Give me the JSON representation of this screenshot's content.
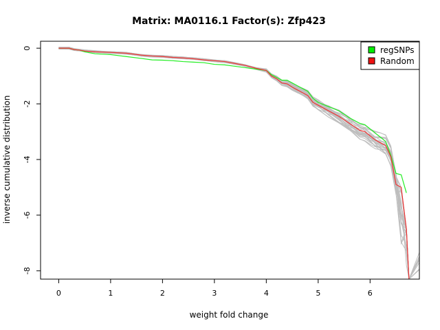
{
  "chart_data": {
    "type": "line",
    "title": "Matrix: MA0116.1 Factor(s): Zfp423",
    "xlabel": "weight fold change",
    "ylabel": "inverse cumulative distribution",
    "xlim": [
      -0.35,
      6.95
    ],
    "ylim": [
      -8.3,
      0.25
    ],
    "xticks": [
      0,
      1,
      2,
      3,
      4,
      5,
      6
    ],
    "yticks": [
      0,
      -2,
      -4,
      -6,
      -8
    ],
    "grid": false,
    "legend": {
      "position": "top-right",
      "entries": [
        {
          "label": "regSNPs",
          "color": "#00ee00"
        },
        {
          "label": "Random",
          "color": "#ee1111"
        }
      ]
    },
    "colors": {
      "regSNPs": "#22ee22",
      "Random": "#ee3333",
      "background_random": "#bebebe"
    },
    "series": [
      {
        "name": "regSNPs",
        "color": "#22ee22",
        "x": [
          0,
          0.2,
          0.3,
          0.4,
          0.5,
          0.7,
          1.0,
          1.3,
          1.6,
          1.8,
          2.0,
          2.2,
          2.4,
          2.6,
          2.8,
          3.0,
          3.2,
          3.4,
          3.6,
          3.8,
          4.0,
          4.1,
          4.2,
          4.3,
          4.4,
          4.5,
          4.6,
          4.7,
          4.8,
          4.9,
          5.0,
          5.2,
          5.4,
          5.6,
          5.8,
          5.9,
          6.0,
          6.1,
          6.2,
          6.3,
          6.4,
          6.5,
          6.6,
          6.7
        ],
        "y": [
          0,
          0,
          -0.05,
          -0.07,
          -0.13,
          -0.2,
          -0.23,
          -0.3,
          -0.37,
          -0.42,
          -0.43,
          -0.45,
          -0.48,
          -0.5,
          -0.52,
          -0.58,
          -0.6,
          -0.65,
          -0.7,
          -0.75,
          -0.8,
          -0.95,
          -1.05,
          -1.15,
          -1.15,
          -1.25,
          -1.35,
          -1.45,
          -1.55,
          -1.8,
          -1.95,
          -2.1,
          -2.25,
          -2.5,
          -2.7,
          -2.75,
          -2.9,
          -3.05,
          -3.2,
          -3.35,
          -3.85,
          -4.5,
          -4.55,
          -5.2
        ]
      },
      {
        "name": "Random",
        "color": "#ee3333",
        "x": [
          0,
          0.2,
          0.3,
          0.4,
          0.5,
          0.7,
          1.0,
          1.3,
          1.6,
          1.8,
          2.0,
          2.2,
          2.4,
          2.6,
          2.8,
          3.0,
          3.2,
          3.4,
          3.6,
          3.8,
          4.0,
          4.1,
          4.2,
          4.3,
          4.4,
          4.5,
          4.6,
          4.7,
          4.8,
          4.9,
          5.0,
          5.2,
          5.4,
          5.6,
          5.8,
          5.9,
          6.0,
          6.1,
          6.2,
          6.3,
          6.4,
          6.5,
          6.6,
          6.7,
          6.75
        ],
        "y": [
          0,
          0,
          -0.05,
          -0.07,
          -0.1,
          -0.13,
          -0.15,
          -0.18,
          -0.25,
          -0.28,
          -0.3,
          -0.33,
          -0.35,
          -0.38,
          -0.42,
          -0.45,
          -0.48,
          -0.55,
          -0.62,
          -0.72,
          -0.8,
          -1.0,
          -1.1,
          -1.25,
          -1.28,
          -1.4,
          -1.5,
          -1.6,
          -1.7,
          -1.95,
          -2.05,
          -2.25,
          -2.45,
          -2.7,
          -2.95,
          -3.0,
          -3.15,
          -3.3,
          -3.4,
          -3.5,
          -3.9,
          -4.9,
          -5.0,
          -6.5,
          -8.3
        ]
      }
    ]
  }
}
